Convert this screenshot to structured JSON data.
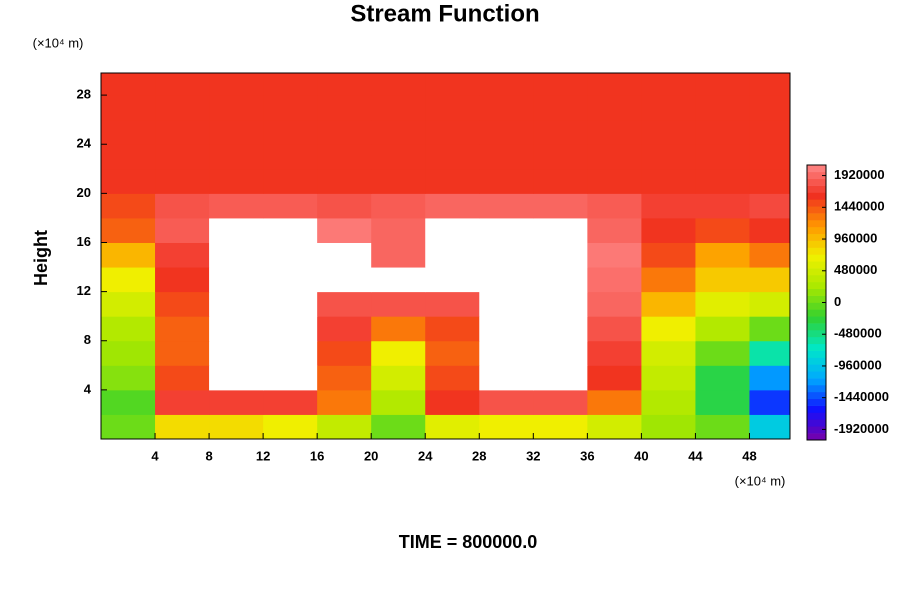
{
  "chart_data": {
    "type": "contour",
    "title": "Stream Function",
    "ylabel": "Height",
    "y_unit": "(×10⁴ m)",
    "x_unit": "(×10⁴ m)",
    "footer": "TIME = 800000.0",
    "xlim": [
      0,
      51
    ],
    "ylim": [
      0,
      29.8
    ],
    "xticks": [
      4,
      8,
      12,
      16,
      20,
      24,
      28,
      32,
      36,
      40,
      44,
      48
    ],
    "yticks": [
      4,
      8,
      12,
      16,
      20,
      24,
      28
    ],
    "zlim": [
      -2080000,
      2080000
    ],
    "zticks": [
      1920000,
      1440000,
      960000,
      480000,
      0,
      -480000,
      -960000,
      -1440000,
      -1920000
    ],
    "colormap": [
      "#7a00a8",
      "#1010ff",
      "#00a8ff",
      "#00e8c8",
      "#30d030",
      "#a8e800",
      "#f0f000",
      "#ff9800",
      "#f03020",
      "#ff8888"
    ],
    "x": [
      2,
      6,
      10,
      14,
      18,
      22,
      26,
      30,
      34,
      38,
      42,
      46,
      50
    ],
    "y": [
      1,
      3,
      5,
      7,
      9,
      11,
      13,
      15,
      17,
      19,
      21,
      23,
      25,
      27,
      29
    ],
    "z": [
      [
        0,
        800000,
        800000,
        700000,
        400000,
        0,
        600000,
        700000,
        700000,
        500000,
        200000,
        0,
        -900000
      ],
      [
        -100000,
        1700000,
        1700000,
        1700000,
        1300000,
        300000,
        1600000,
        1800000,
        1800000,
        1300000,
        300000,
        -300000,
        -1500000
      ],
      [
        100000,
        1500000,
        2100000,
        2100000,
        1400000,
        500000,
        1500000,
        2100000,
        2100000,
        1600000,
        400000,
        -300000,
        -1200000
      ],
      [
        200000,
        1400000,
        2100000,
        2100000,
        1500000,
        700000,
        1400000,
        2100000,
        2100000,
        1700000,
        500000,
        0,
        -600000
      ],
      [
        300000,
        1400000,
        2100000,
        2100000,
        1700000,
        1300000,
        1500000,
        2100000,
        2100000,
        1800000,
        700000,
        300000,
        0
      ],
      [
        500000,
        1500000,
        2100000,
        2100000,
        1800000,
        1800000,
        1800000,
        2100000,
        2100000,
        1900000,
        1000000,
        600000,
        500000
      ],
      [
        700000,
        1600000,
        2100000,
        2100000,
        2100000,
        2100000,
        2100000,
        2100000,
        2100000,
        1950000,
        1300000,
        900000,
        900000
      ],
      [
        1000000,
        1700000,
        2100000,
        2100000,
        2100000,
        1900000,
        2100000,
        2100000,
        2100000,
        2000000,
        1500000,
        1100000,
        1300000
      ],
      [
        1400000,
        1850000,
        2100000,
        2100000,
        2000000,
        1900000,
        2100000,
        2100000,
        2100000,
        1900000,
        1600000,
        1500000,
        1600000
      ],
      [
        1500000,
        1800000,
        1850000,
        1850000,
        1800000,
        1850000,
        1900000,
        1900000,
        1900000,
        1850000,
        1700000,
        1700000,
        1750000
      ],
      [
        1600000,
        1600000,
        1600000,
        1600000,
        1600000,
        1600000,
        1600000,
        1600000,
        1600000,
        1600000,
        1600000,
        1600000,
        1600000
      ],
      [
        1600000,
        1600000,
        1600000,
        1600000,
        1600000,
        1600000,
        1600000,
        1600000,
        1600000,
        1600000,
        1600000,
        1600000,
        1600000
      ],
      [
        1600000,
        1600000,
        1600000,
        1600000,
        1600000,
        1600000,
        1600000,
        1600000,
        1600000,
        1600000,
        1600000,
        1600000,
        1600000
      ],
      [
        1600000,
        1600000,
        1600000,
        1600000,
        1600000,
        1600000,
        1600000,
        1600000,
        1600000,
        1600000,
        1600000,
        1600000,
        1600000
      ],
      [
        1600000,
        1600000,
        1600000,
        1600000,
        1600000,
        1600000,
        1600000,
        1600000,
        1600000,
        1600000,
        1600000,
        1600000,
        1600000
      ]
    ]
  }
}
